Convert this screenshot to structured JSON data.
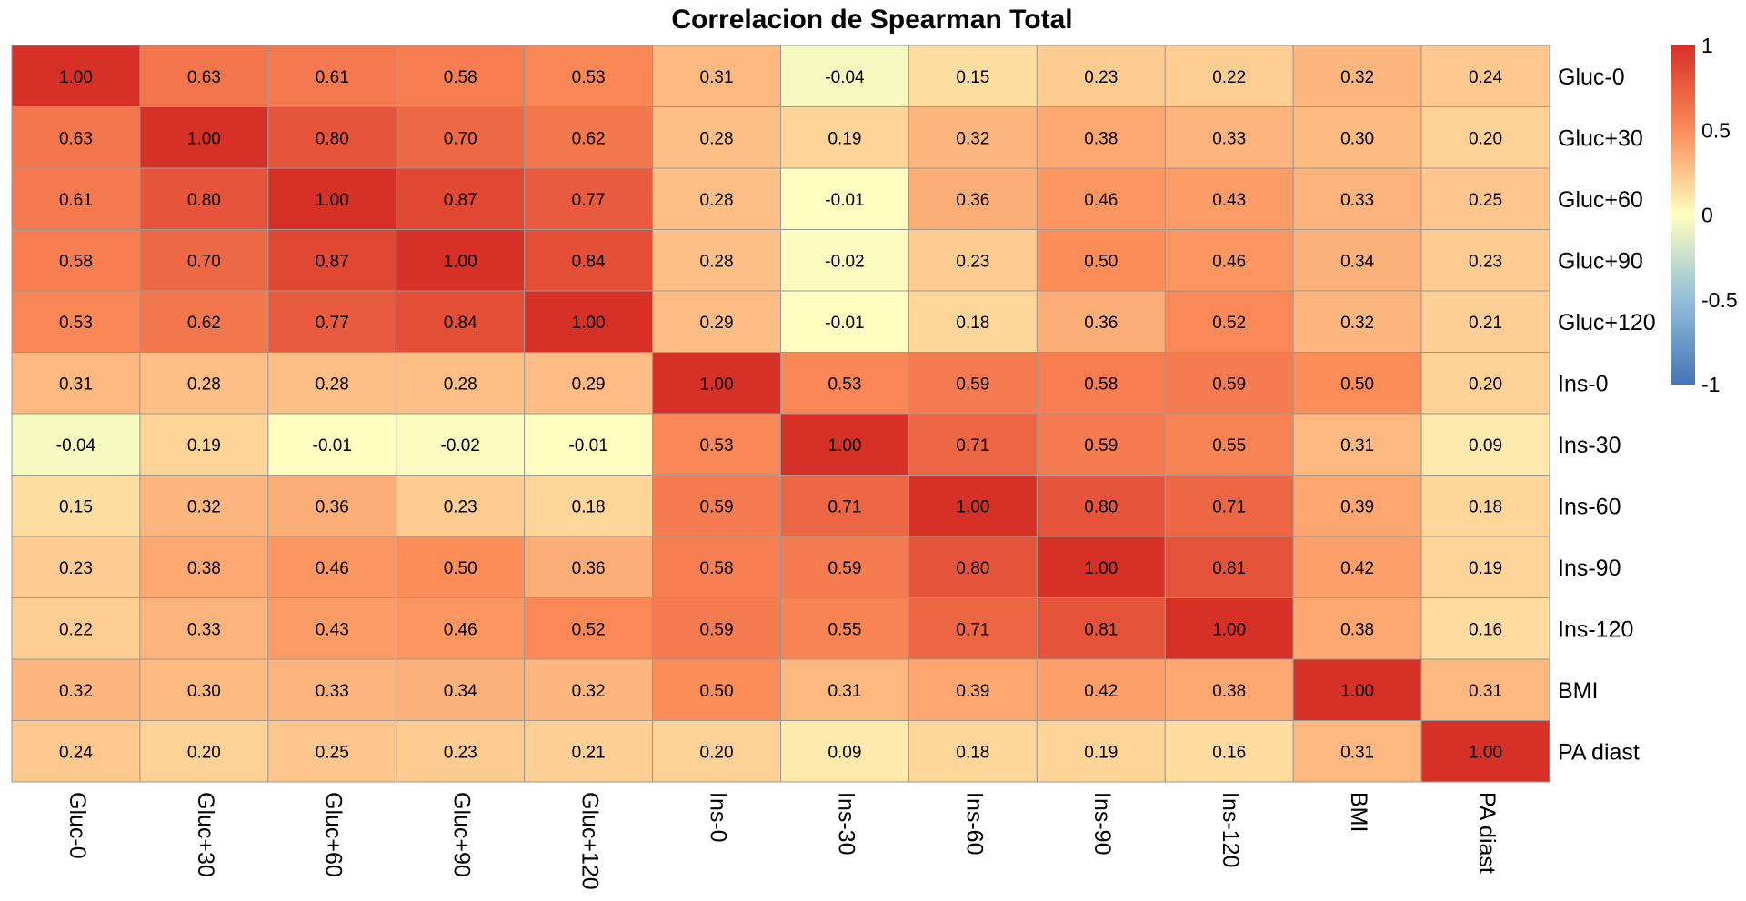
{
  "chart_data": {
    "type": "heatmap",
    "title": "Correlacion de Spearman Total",
    "rows": [
      "Gluc-0",
      "Gluc+30",
      "Gluc+60",
      "Gluc+90",
      "Gluc+120",
      "Ins-0",
      "Ins-30",
      "Ins-60",
      "Ins-90",
      "Ins-120",
      "BMI",
      "PA diast"
    ],
    "columns": [
      "Gluc-0",
      "Gluc+30",
      "Gluc+60",
      "Gluc+90",
      "Gluc+120",
      "Ins-0",
      "Ins-30",
      "Ins-60",
      "Ins-90",
      "Ins-120",
      "BMI",
      "PA diast"
    ],
    "values": [
      [
        1.0,
        0.63,
        0.61,
        0.58,
        0.53,
        0.31,
        -0.04,
        0.15,
        0.23,
        0.22,
        0.32,
        0.24
      ],
      [
        0.63,
        1.0,
        0.8,
        0.7,
        0.62,
        0.28,
        0.19,
        0.32,
        0.38,
        0.33,
        0.3,
        0.2
      ],
      [
        0.61,
        0.8,
        1.0,
        0.87,
        0.77,
        0.28,
        -0.01,
        0.36,
        0.46,
        0.43,
        0.33,
        0.25
      ],
      [
        0.58,
        0.7,
        0.87,
        1.0,
        0.84,
        0.28,
        -0.02,
        0.23,
        0.5,
        0.46,
        0.34,
        0.23
      ],
      [
        0.53,
        0.62,
        0.77,
        0.84,
        1.0,
        0.29,
        -0.01,
        0.18,
        0.36,
        0.52,
        0.32,
        0.21
      ],
      [
        0.31,
        0.28,
        0.28,
        0.28,
        0.29,
        1.0,
        0.53,
        0.59,
        0.58,
        0.59,
        0.5,
        0.2
      ],
      [
        -0.04,
        0.19,
        -0.01,
        -0.02,
        -0.01,
        0.53,
        1.0,
        0.71,
        0.59,
        0.55,
        0.31,
        0.09
      ],
      [
        0.15,
        0.32,
        0.36,
        0.23,
        0.18,
        0.59,
        0.71,
        1.0,
        0.8,
        0.71,
        0.39,
        0.18
      ],
      [
        0.23,
        0.38,
        0.46,
        0.5,
        0.36,
        0.58,
        0.59,
        0.8,
        1.0,
        0.81,
        0.42,
        0.19
      ],
      [
        0.22,
        0.33,
        0.43,
        0.46,
        0.52,
        0.59,
        0.55,
        0.71,
        0.81,
        1.0,
        0.38,
        0.16
      ],
      [
        0.32,
        0.3,
        0.33,
        0.34,
        0.32,
        0.5,
        0.31,
        0.39,
        0.42,
        0.38,
        1.0,
        0.31
      ],
      [
        0.24,
        0.2,
        0.25,
        0.23,
        0.21,
        0.2,
        0.09,
        0.18,
        0.19,
        0.16,
        0.31,
        1.0
      ]
    ],
    "color_scale": {
      "min": -1,
      "max": 1,
      "stops": [
        {
          "value": -1,
          "color": "#4575b4"
        },
        {
          "value": -0.5,
          "color": "#91bfdb"
        },
        {
          "value": 0,
          "color": "#ffffbf"
        },
        {
          "value": 0.5,
          "color": "#fc8d59"
        },
        {
          "value": 1,
          "color": "#d73027"
        }
      ]
    },
    "legend": {
      "position": "right",
      "ticks": [
        {
          "value": 1,
          "label": "1"
        },
        {
          "value": 0.5,
          "label": "0.5"
        },
        {
          "value": 0,
          "label": "0"
        },
        {
          "value": -0.5,
          "label": "-0.5"
        },
        {
          "value": -1,
          "label": "-1"
        }
      ]
    },
    "cell_border_color": "#999999",
    "label_decimals": 2,
    "row_labels_position": "right",
    "column_labels_position": "bottom",
    "column_labels_rotation": "vertical"
  }
}
